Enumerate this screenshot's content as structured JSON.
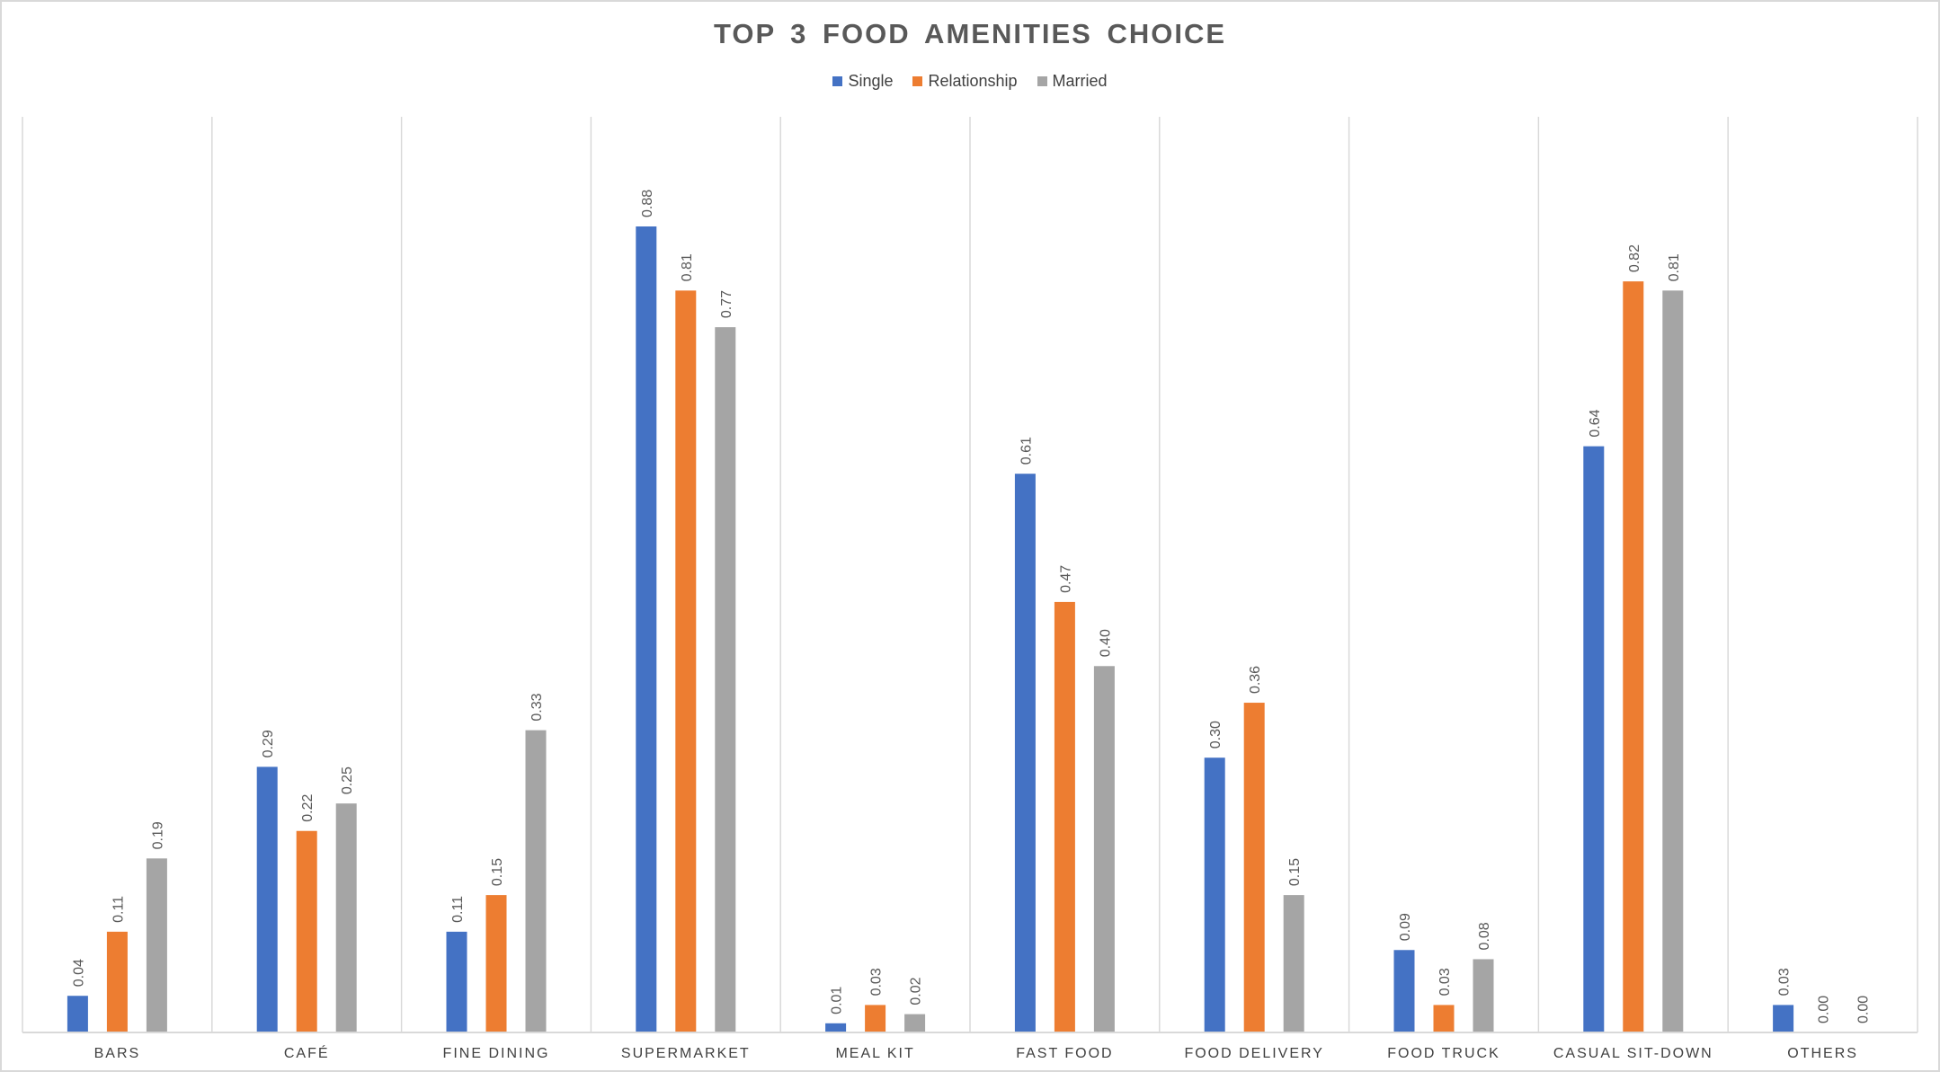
{
  "chart_data": {
    "type": "bar",
    "title": "TOP 3 FOOD AMENITIES CHOICE",
    "xlabel": "",
    "ylabel": "",
    "ylim": [
      0,
      1
    ],
    "grid": false,
    "legend_position": "top",
    "categories": [
      "BARS",
      "CAFÉ",
      "FINE DINING",
      "SUPERMARKET",
      "MEAL KIT",
      "FAST FOOD",
      "FOOD DELIVERY",
      "FOOD TRUCK",
      "CASUAL SIT-DOWN",
      "OTHERS"
    ],
    "series": [
      {
        "name": "Single",
        "color": "#4472C4",
        "values": [
          0.04,
          0.29,
          0.11,
          0.88,
          0.01,
          0.61,
          0.3,
          0.09,
          0.64,
          0.03
        ],
        "labels": [
          "0.04",
          "0.29",
          "0.11",
          "0.88",
          "0.01",
          "0.61",
          "0.30",
          "0.09",
          "0.64",
          "0.03"
        ]
      },
      {
        "name": "Relationship",
        "color": "#ED7D31",
        "values": [
          0.11,
          0.22,
          0.15,
          0.81,
          0.03,
          0.47,
          0.36,
          0.03,
          0.82,
          0.0
        ],
        "labels": [
          "0.11",
          "0.22",
          "0.15",
          "0.81",
          "0.03",
          "0.47",
          "0.36",
          "0.03",
          "0.82",
          "0.00"
        ]
      },
      {
        "name": "Married",
        "color": "#A5A5A5",
        "values": [
          0.19,
          0.25,
          0.33,
          0.77,
          0.02,
          0.4,
          0.15,
          0.08,
          0.81,
          0.0
        ],
        "labels": [
          "0.19",
          "0.25",
          "0.33",
          "0.77",
          "0.02",
          "0.40",
          "0.15",
          "0.08",
          "0.81",
          "0.00"
        ]
      }
    ]
  }
}
